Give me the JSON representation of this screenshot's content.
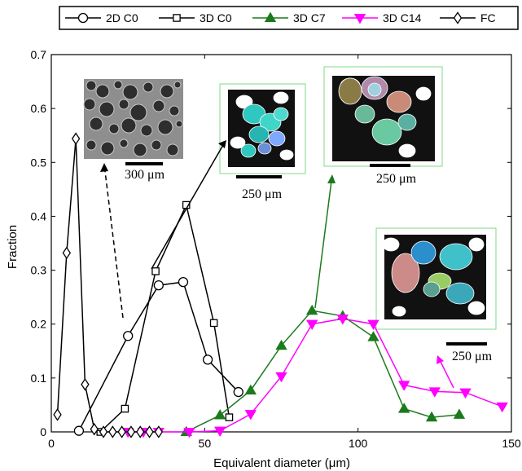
{
  "chart_data": {
    "type": "line",
    "title": "",
    "xlabel": "Equivalent diameter (μm)",
    "ylabel": "Fraction",
    "xlim": [
      0,
      150
    ],
    "ylim": [
      0,
      0.7
    ],
    "xticks": [
      0,
      50,
      100,
      150
    ],
    "yticks": [
      0,
      0.1,
      0.2,
      0.3,
      0.4,
      0.5,
      0.6,
      0.7
    ],
    "grid": false,
    "legend_position": "top",
    "series": [
      {
        "name": "2D C0",
        "color": "#000000",
        "marker": "circle",
        "x": [
          9,
          25,
          35,
          43,
          51,
          61
        ],
        "y": [
          0.002,
          0.178,
          0.272,
          0.278,
          0.134,
          0.074
        ]
      },
      {
        "name": "3D C0",
        "color": "#000000",
        "marker": "square",
        "x": [
          16,
          24,
          34,
          44,
          53,
          58
        ],
        "y": [
          0.0,
          0.043,
          0.298,
          0.421,
          0.202,
          0.027
        ]
      },
      {
        "name": "3D C7",
        "color": "#1b7a1b",
        "marker": "triangle-up",
        "x": [
          44,
          55,
          65,
          75,
          85,
          95,
          105,
          115,
          124,
          133
        ],
        "y": [
          0.0,
          0.031,
          0.077,
          0.16,
          0.225,
          0.215,
          0.176,
          0.043,
          0.027,
          0.032
        ]
      },
      {
        "name": "3D C14",
        "color": "#ff00ff",
        "marker": "triangle-down",
        "x": [
          25,
          30,
          35,
          45,
          55,
          65,
          75,
          85,
          95,
          105,
          115,
          125,
          135,
          147
        ],
        "y": [
          0.0,
          0.0,
          0.0,
          0.0,
          0.002,
          0.033,
          0.103,
          0.2,
          0.21,
          0.2,
          0.087,
          0.075,
          0.073,
          0.047
        ]
      },
      {
        "name": "FC",
        "color": "#000000",
        "marker": "diamond",
        "x": [
          2,
          5,
          8,
          11,
          14,
          17,
          20,
          23,
          26,
          29,
          32,
          35
        ],
        "y": [
          0.032,
          0.332,
          0.544,
          0.088,
          0.005,
          0.0,
          0.0,
          0.0,
          0.0,
          0.0,
          0.0,
          0.0
        ]
      }
    ],
    "annotations": [
      "300 μm",
      "250 μm",
      "250 μm",
      "250 μm"
    ]
  }
}
